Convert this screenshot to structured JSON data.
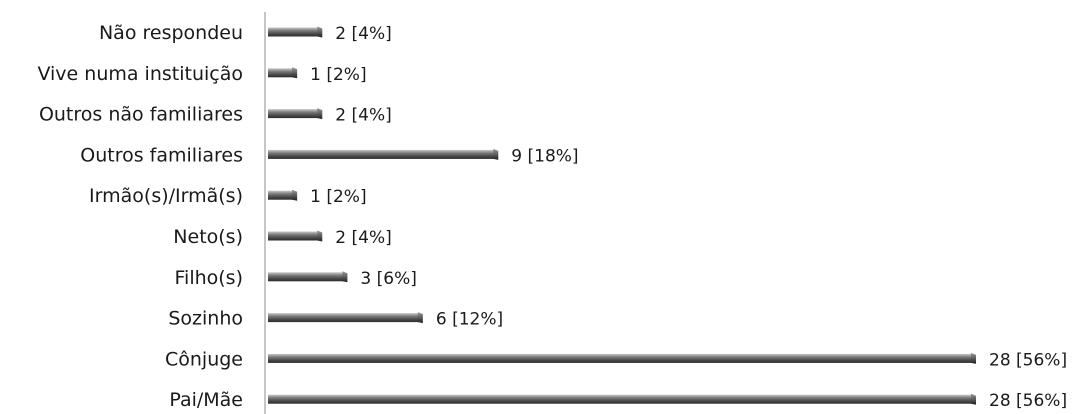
{
  "chart_data": {
    "type": "bar",
    "orientation": "horizontal",
    "categories": [
      "Não respondeu",
      "Vive numa instituição",
      "Outros não familiares",
      "Outros familiares",
      "Irmão(s)/Irmã(s)",
      "Neto(s)",
      "Filho(s)",
      "Sozinho",
      "Cônjuge",
      "Pai/Mãe"
    ],
    "values": [
      2,
      1,
      2,
      9,
      1,
      2,
      3,
      6,
      28,
      28
    ],
    "data_labels": [
      "2 [4%]",
      "1 [2%]",
      "2 [4%]",
      "9 [18%]",
      "1 [2%]",
      "2 [4%]",
      "3 [6%]",
      "6 [12%]",
      "28 [56%]",
      "28 [56%]"
    ],
    "xlim": [
      0,
      28
    ],
    "grid": false,
    "legend": "none",
    "bar_color": "#5f5f5f"
  }
}
